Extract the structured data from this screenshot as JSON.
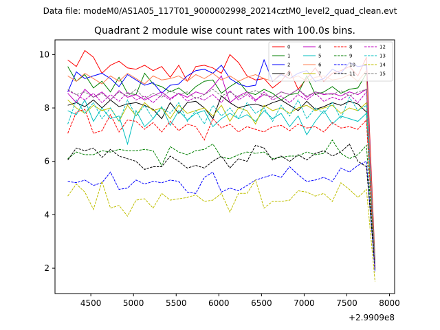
{
  "suptitle": "Data file: modeM0/AS1A05_117T01_9000002998_20214cztM0_level2_quad_clean.evt",
  "chart_data": {
    "type": "line",
    "title": "Quadrant 2 module wise count rates with 100.0s bins.",
    "xlabel": "",
    "ylabel": "",
    "x_offset_label": "+2.9909e8",
    "xlim": [
      4080,
      8060
    ],
    "ylim": [
      1.05,
      10.55
    ],
    "xticks": [
      4500,
      5000,
      5500,
      6000,
      6500,
      7000,
      7500,
      8000
    ],
    "yticks": [
      2,
      4,
      6,
      8,
      10
    ],
    "grid": false,
    "legend_placement": "top-right",
    "x": [
      4230,
      4330,
      4430,
      4530,
      4630,
      4730,
      4830,
      4930,
      5030,
      5130,
      5230,
      5330,
      5430,
      5530,
      5630,
      5730,
      5830,
      5930,
      6030,
      6130,
      6230,
      6330,
      6430,
      6530,
      6630,
      6730,
      6830,
      6930,
      7030,
      7130,
      7230,
      7330,
      7430,
      7530,
      7630,
      7730,
      7830
    ],
    "series": [
      {
        "name": "0",
        "color": "#ff0000",
        "dash": "solid",
        "values": [
          9.8,
          9.55,
          10.15,
          9.9,
          9.3,
          9.6,
          9.75,
          9.5,
          9.45,
          9.6,
          9.4,
          9.55,
          9.15,
          9.6,
          9.0,
          9.55,
          9.6,
          9.5,
          9.3,
          10.0,
          9.7,
          9.2,
          9.05,
          9.1,
          8.75,
          9.0,
          9.4,
          8.7,
          9.1,
          9.5,
          9.0,
          9.3,
          9.4,
          9.55,
          9.2,
          9.9,
          2.3
        ]
      },
      {
        "name": "1",
        "color": "#008000",
        "dash": "solid",
        "values": [
          9.55,
          9.0,
          9.25,
          8.75,
          9.0,
          8.6,
          9.15,
          8.55,
          8.5,
          9.3,
          8.9,
          8.8,
          8.6,
          8.75,
          8.5,
          8.8,
          9.0,
          9.05,
          8.55,
          8.8,
          9.0,
          8.6,
          8.5,
          8.7,
          8.55,
          8.3,
          8.5,
          8.55,
          9.2,
          8.5,
          8.6,
          8.8,
          8.55,
          8.7,
          8.75,
          9.3,
          2.2
        ]
      },
      {
        "name": "2",
        "color": "#0000ff",
        "dash": "solid",
        "values": [
          8.6,
          9.35,
          9.1,
          9.2,
          9.3,
          9.1,
          8.8,
          9.25,
          9.05,
          8.85,
          8.95,
          8.55,
          8.85,
          8.9,
          9.2,
          9.4,
          9.45,
          9.3,
          9.6,
          9.1,
          8.9,
          8.8,
          8.85,
          9.8,
          9.0,
          9.25,
          9.1,
          9.3,
          9.4,
          9.0,
          9.1,
          9.45,
          9.3,
          9.7,
          9.55,
          9.6,
          2.05
        ]
      },
      {
        "name": "3",
        "color": "#000000",
        "dash": "solid",
        "values": [
          8.1,
          8.2,
          8.05,
          8.3,
          8.0,
          8.3,
          8.05,
          8.15,
          8.2,
          8.1,
          7.95,
          7.6,
          8.2,
          7.8,
          8.2,
          8.25,
          8.0,
          7.6,
          8.45,
          8.2,
          8.0,
          8.1,
          8.15,
          8.05,
          8.2,
          8.3,
          8.1,
          7.9,
          8.25,
          7.95,
          8.05,
          8.2,
          8.1,
          8.25,
          8.15,
          7.85,
          1.95
        ]
      },
      {
        "name": "4",
        "color": "#bf00bf",
        "dash": "solid",
        "values": [
          8.55,
          8.2,
          8.7,
          8.4,
          8.6,
          8.3,
          8.65,
          8.4,
          8.5,
          8.3,
          8.45,
          8.6,
          8.35,
          8.55,
          8.4,
          8.6,
          8.5,
          8.8,
          9.2,
          8.2,
          8.45,
          8.6,
          8.3,
          8.5,
          8.4,
          8.6,
          8.5,
          8.7,
          8.4,
          8.6,
          8.5,
          8.55,
          8.45,
          8.6,
          8.5,
          8.7,
          2.0
        ]
      },
      {
        "name": "5",
        "color": "#00bfbf",
        "dash": "solid",
        "values": [
          7.9,
          7.75,
          8.3,
          7.5,
          8.0,
          7.6,
          7.7,
          6.65,
          7.9,
          7.3,
          7.6,
          8.05,
          7.35,
          7.9,
          7.55,
          7.8,
          7.9,
          7.3,
          7.6,
          7.8,
          7.6,
          7.75,
          7.5,
          7.9,
          7.6,
          7.8,
          7.3,
          7.7,
          7.0,
          7.5,
          7.9,
          7.4,
          7.7,
          7.6,
          7.5,
          7.8,
          2.1
        ]
      },
      {
        "name": "6",
        "color": "#ff7f50",
        "dash": "solid",
        "values": [
          9.2,
          9.0,
          9.3,
          9.1,
          8.9,
          9.2,
          9.0,
          9.3,
          9.1,
          8.9,
          9.2,
          9.05,
          9.1,
          9.2,
          9.0,
          9.25,
          9.1,
          9.3,
          9.05,
          9.2,
          9.0,
          9.15,
          9.25,
          9.1,
          9.0,
          9.3,
          9.1,
          9.2,
          9.0,
          9.15,
          9.2,
          9.05,
          9.1,
          9.25,
          9.0,
          9.4,
          2.15
        ]
      },
      {
        "name": "7",
        "color": "#bfbf00",
        "dash": "solid",
        "values": [
          8.3,
          8.0,
          7.8,
          8.1,
          7.9,
          8.0,
          7.5,
          8.1,
          7.7,
          8.2,
          7.9,
          8.0,
          7.6,
          8.1,
          7.8,
          7.9,
          8.0,
          7.7,
          8.1,
          7.5,
          8.0,
          7.9,
          7.4,
          8.1,
          7.9,
          8.0,
          7.8,
          8.0,
          8.1,
          7.9,
          8.0,
          8.1,
          7.8,
          8.0,
          7.9,
          8.2,
          2.0
        ]
      },
      {
        "name": "8",
        "color": "#ff0000",
        "dash": "dashed",
        "values": [
          7.05,
          7.85,
          7.95,
          7.05,
          7.15,
          7.75,
          7.1,
          7.55,
          7.5,
          7.2,
          7.45,
          7.1,
          7.5,
          7.15,
          7.4,
          7.3,
          6.8,
          7.6,
          7.25,
          7.4,
          7.1,
          7.3,
          7.2,
          7.1,
          7.3,
          7.35,
          7.15,
          7.4,
          7.25,
          7.3,
          7.1,
          7.45,
          7.25,
          7.3,
          7.2,
          7.55,
          1.9
        ]
      },
      {
        "name": "9",
        "color": "#008000",
        "dash": "dashed",
        "values": [
          6.1,
          6.35,
          6.25,
          6.25,
          6.4,
          6.35,
          6.45,
          6.4,
          6.4,
          6.45,
          6.4,
          5.85,
          6.55,
          6.35,
          6.25,
          6.4,
          6.45,
          6.65,
          6.15,
          6.1,
          6.25,
          6.35,
          6.3,
          6.35,
          6.1,
          6.15,
          6.2,
          6.2,
          6.35,
          6.25,
          6.3,
          6.8,
          6.3,
          6.1,
          6.25,
          6.6,
          1.95
        ]
      },
      {
        "name": "10",
        "color": "#0000ff",
        "dash": "dashed",
        "values": [
          5.25,
          5.2,
          5.3,
          5.1,
          5.2,
          5.6,
          4.95,
          5.0,
          5.3,
          5.15,
          5.25,
          5.2,
          5.3,
          5.25,
          4.85,
          4.8,
          5.4,
          5.6,
          4.85,
          5.0,
          4.9,
          5.1,
          5.3,
          5.4,
          5.5,
          5.4,
          5.8,
          5.5,
          5.25,
          5.3,
          5.4,
          5.25,
          5.75,
          5.6,
          5.85,
          6.0,
          1.85
        ]
      },
      {
        "name": "11",
        "color": "#000000",
        "dash": "dashed",
        "values": [
          6.05,
          6.5,
          6.4,
          6.5,
          6.15,
          6.45,
          6.2,
          6.1,
          6.0,
          5.7,
          5.8,
          5.8,
          6.2,
          6.0,
          5.75,
          5.85,
          5.75,
          6.0,
          6.2,
          5.75,
          6.1,
          6.0,
          6.6,
          6.5,
          6.05,
          6.2,
          6.0,
          6.25,
          6.05,
          6.3,
          6.4,
          6.2,
          6.35,
          6.65,
          6.0,
          5.8,
          2.0
        ]
      },
      {
        "name": "12",
        "color": "#bf00bf",
        "dash": "dashed",
        "values": [
          8.65,
          8.5,
          8.3,
          8.55,
          8.2,
          8.5,
          8.25,
          8.6,
          8.3,
          8.45,
          8.2,
          8.5,
          8.3,
          8.55,
          8.25,
          8.4,
          8.3,
          8.5,
          8.2,
          8.65,
          8.3,
          8.5,
          8.25,
          8.6,
          8.3,
          8.45,
          8.2,
          8.5,
          8.3,
          8.55,
          8.25,
          8.4,
          8.3,
          8.5,
          8.2,
          8.6,
          2.05
        ]
      },
      {
        "name": "13",
        "color": "#00bfbf",
        "dash": "dashed",
        "values": [
          7.4,
          8.3,
          7.8,
          8.2,
          7.6,
          8.0,
          7.5,
          8.3,
          7.7,
          8.1,
          7.6,
          8.0,
          7.8,
          8.2,
          7.5,
          7.9,
          7.4,
          8.1,
          7.7,
          8.0,
          7.6,
          8.2,
          7.8,
          8.0,
          7.5,
          8.1,
          7.7,
          8.3,
          7.6,
          8.0,
          7.8,
          8.2,
          7.6,
          8.4,
          7.9,
          8.1,
          2.2
        ]
      },
      {
        "name": "14",
        "color": "#bfbf00",
        "dash": "dashed",
        "values": [
          4.7,
          5.15,
          4.85,
          4.2,
          5.25,
          4.25,
          4.35,
          3.95,
          4.55,
          4.6,
          4.25,
          4.8,
          4.55,
          4.6,
          4.65,
          4.75,
          4.5,
          4.55,
          4.8,
          4.1,
          4.8,
          4.8,
          5.3,
          4.25,
          4.5,
          4.5,
          4.55,
          4.9,
          4.85,
          4.7,
          4.8,
          4.5,
          5.2,
          4.95,
          4.65,
          4.95,
          1.5
        ]
      },
      {
        "name": "15",
        "color": "#808080",
        "dash": "dashed",
        "values": [
          8.7,
          8.5,
          8.6,
          8.4,
          8.55,
          8.3,
          8.6,
          8.45,
          8.7,
          8.35,
          8.55,
          8.4,
          8.65,
          8.5,
          8.6,
          8.35,
          8.5,
          8.7,
          8.45,
          8.6,
          8.4,
          8.55,
          8.65,
          8.5,
          8.4,
          8.6,
          8.5,
          8.7,
          8.45,
          8.6,
          8.55,
          8.5,
          8.65,
          8.45,
          8.6,
          8.7,
          2.1
        ]
      }
    ]
  }
}
